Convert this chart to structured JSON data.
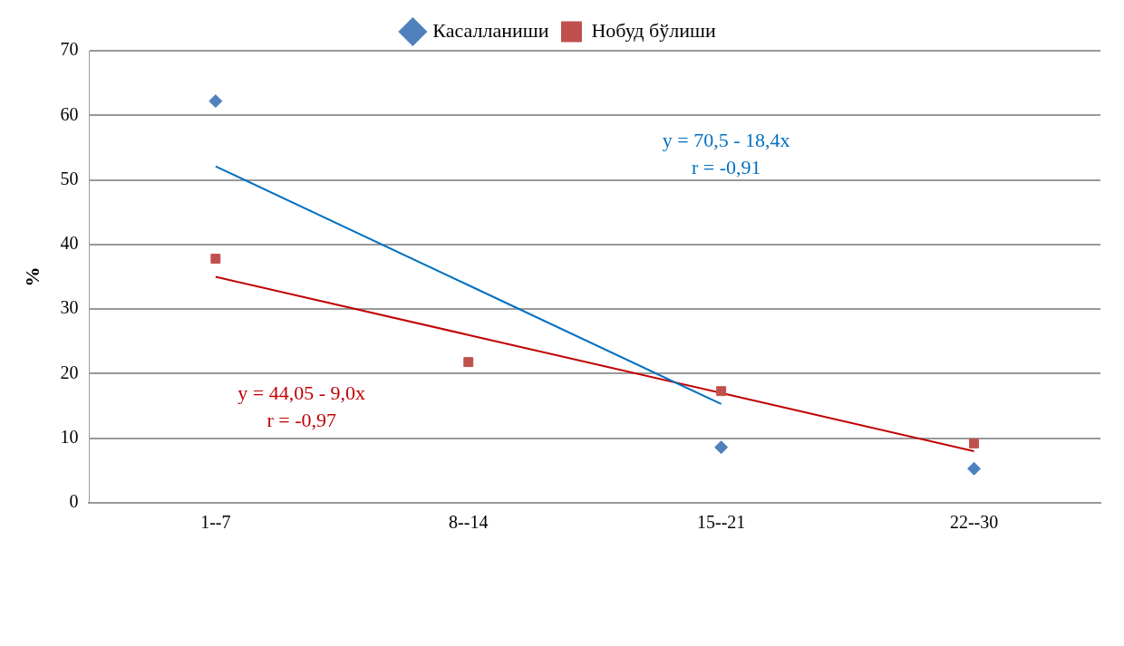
{
  "chart_data": {
    "type": "scatter",
    "ylabel": "%",
    "categories": [
      "1--7",
      "8--14",
      "15--21",
      "22--30"
    ],
    "ylim": [
      0,
      70
    ],
    "yticks": [
      0,
      10,
      20,
      30,
      40,
      50,
      60,
      70
    ],
    "grid": "y",
    "legend": "top",
    "series": [
      {
        "name": "Касалланиши",
        "color": "#4f81bd",
        "marker": "diamond",
        "values": [
          62.2,
          null,
          8.6,
          5.3
        ]
      },
      {
        "name": "Нобуд бўлиши",
        "color": "#c0504d",
        "marker": "square",
        "values": [
          37.8,
          21.8,
          17.3,
          9.2
        ]
      },
      {
        "type": "line",
        "color": "#0070c0",
        "values": [
          52.1,
          33.7,
          15.3,
          null
        ]
      },
      {
        "type": "line",
        "color": "#c00000",
        "values": [
          35,
          26,
          17,
          8
        ]
      }
    ],
    "annotations": [
      "y = 70,5 - 18,4x",
      "r = -0,91",
      "y = 44,05 - 9,0x",
      "r = -0,97"
    ]
  }
}
